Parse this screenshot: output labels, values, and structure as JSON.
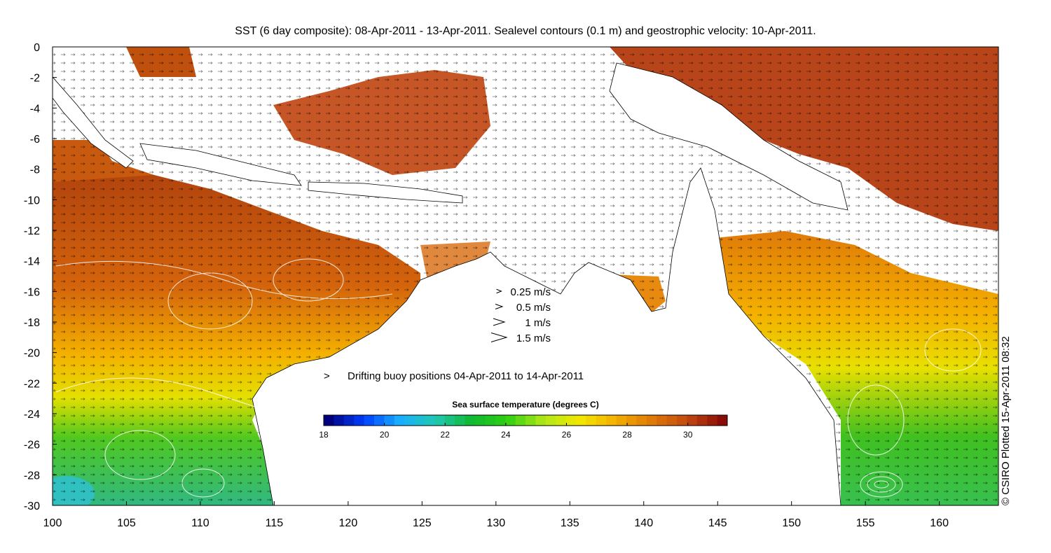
{
  "title": "SST (6 day composite): 08-Apr-2011 - 13-Apr-2011. Sealevel contours (0.1 m) and geostrophic velocity: 10-Apr-2011.",
  "axes": {
    "x_ticks": [
      "100",
      "105",
      "110",
      "115",
      "120",
      "125",
      "130",
      "135",
      "140",
      "145",
      "150",
      "155",
      "160"
    ],
    "y_ticks": [
      "0",
      "-2",
      "-4",
      "-6",
      "-8",
      "-10",
      "-12",
      "-14",
      "-16",
      "-18",
      "-20",
      "-22",
      "-24",
      "-26",
      "-28",
      "-30"
    ],
    "lon_range": [
      100,
      164
    ],
    "lat_range": [
      -30,
      0
    ]
  },
  "velocity_legend": [
    {
      "label": "0.25 m/s",
      "speed": 0.25
    },
    {
      "label": "0.5 m/s",
      "speed": 0.5
    },
    {
      "label": "1 m/s",
      "speed": 1
    },
    {
      "label": "1.5 m/s",
      "speed": 1.5
    }
  ],
  "buoy_legend": {
    "symbol": ">",
    "label": "Drifting buoy positions 04-Apr-2011 to 14-Apr-2011",
    "color": "#cc33cc"
  },
  "colorbar": {
    "title": "Sea surface temperature (degrees C)",
    "ticks": [
      "18",
      "20",
      "22",
      "24",
      "26",
      "28",
      "30"
    ],
    "range": [
      18,
      31.3
    ],
    "colors": [
      "#00007f",
      "#0040ff",
      "#1ab0ff",
      "#20c8b0",
      "#10b830",
      "#30d010",
      "#b0e818",
      "#f2e800",
      "#f4b000",
      "#e07a08",
      "#c44a10",
      "#8a0c08"
    ]
  },
  "credit": "© CSIRO Plotted 15-Apr-2011 08:32"
}
